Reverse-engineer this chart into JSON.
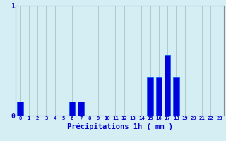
{
  "categories": [
    0,
    1,
    2,
    3,
    4,
    5,
    6,
    7,
    8,
    9,
    10,
    11,
    12,
    13,
    14,
    15,
    16,
    17,
    18,
    19,
    20,
    21,
    22,
    23
  ],
  "values": [
    0.13,
    0,
    0,
    0,
    0,
    0,
    0.13,
    0.13,
    0,
    0,
    0,
    0,
    0,
    0,
    0,
    0.35,
    0.35,
    0.55,
    0.35,
    0,
    0,
    0,
    0,
    0
  ],
  "bar_color": "#0000dd",
  "bar_edge_color": "#0055ff",
  "background_color": "#d4eef4",
  "grid_color": "#aacccc",
  "axis_color": "#888899",
  "text_color": "#0000cc",
  "xlabel": "Précipitations 1h ( mm )",
  "ylim": [
    0,
    1.0
  ],
  "yticks": [
    0,
    1
  ],
  "xlabel_fontsize": 7.5
}
